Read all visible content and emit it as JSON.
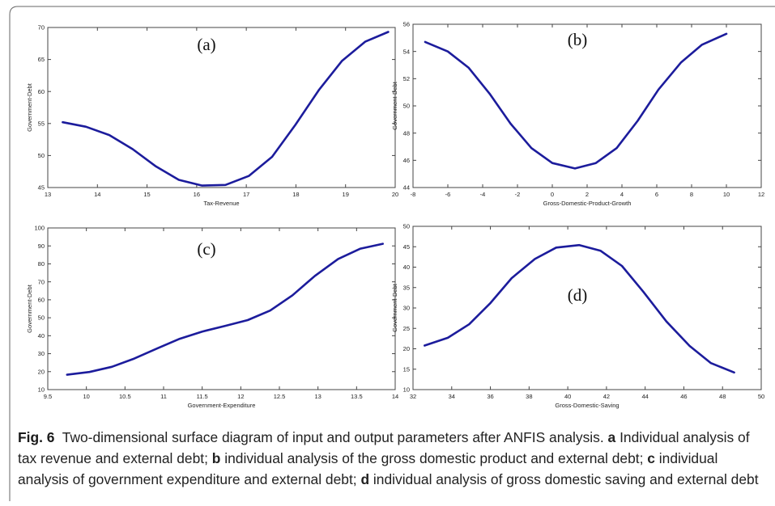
{
  "caption": {
    "fig_label": "Fig. 6",
    "title": "Two-dimensional surface diagram of input and output parameters after ANFIS analysis.",
    "parts": [
      {
        "letter": "a",
        "text": "Individual analysis of tax revenue and external debt;"
      },
      {
        "letter": "b",
        "text": "individual analysis of the gross domestic product and external debt;"
      },
      {
        "letter": "c",
        "text": "individual analysis of government expenditure and external debt;"
      },
      {
        "letter": "d",
        "text": "individual analysis of gross domestic saving and external debt"
      }
    ]
  },
  "colors": {
    "line": "#1c1c9c",
    "axis": "#444444",
    "text": "#222222"
  },
  "chart_data": [
    {
      "type": "line",
      "panel_label": "(a)",
      "xlabel": "Tax-Revenue",
      "ylabel": "Government-Debt",
      "xlim": [
        13,
        20
      ],
      "ylim": [
        45,
        70
      ],
      "xticks": [
        13,
        14,
        15,
        16,
        17,
        18,
        19,
        20
      ],
      "yticks": [
        45,
        50,
        55,
        60,
        65,
        70
      ],
      "x": [
        13.3,
        13.77,
        14.24,
        14.71,
        15.18,
        15.64,
        16.11,
        16.58,
        17.05,
        17.52,
        17.99,
        18.46,
        18.93,
        19.4,
        19.86
      ],
      "y": [
        55.2,
        54.5,
        53.2,
        51.0,
        48.3,
        46.2,
        45.3,
        45.4,
        46.8,
        49.8,
        54.8,
        60.2,
        64.8,
        67.8,
        69.3
      ]
    },
    {
      "type": "line",
      "panel_label": "(b)",
      "xlabel": "Gross-Domestic-Product-Growth",
      "ylabel": "Government-Debt",
      "xlim": [
        -8,
        12
      ],
      "ylim": [
        44,
        56
      ],
      "xticks": [
        -8,
        -6,
        -4,
        -2,
        0,
        2,
        4,
        6,
        8,
        10,
        12
      ],
      "yticks": [
        44,
        46,
        48,
        50,
        52,
        54,
        56
      ],
      "x": [
        -7.3,
        -6.0,
        -4.8,
        -3.6,
        -2.4,
        -1.2,
        0.0,
        1.3,
        2.5,
        3.7,
        4.9,
        6.1,
        7.4,
        8.6,
        10.0
      ],
      "y": [
        54.7,
        54.0,
        52.8,
        50.9,
        48.7,
        46.9,
        45.8,
        45.4,
        45.8,
        46.9,
        48.9,
        51.2,
        53.2,
        54.5,
        55.3
      ]
    },
    {
      "type": "line",
      "panel_label": "(c)",
      "xlabel": "Government-Expenditure",
      "ylabel": "Government-Debt",
      "xlim": [
        9.5,
        14
      ],
      "ylim": [
        10,
        100
      ],
      "xticks": [
        9.5,
        10,
        10.5,
        11,
        11.5,
        12,
        12.5,
        13,
        13.5,
        14
      ],
      "yticks": [
        10,
        20,
        30,
        40,
        50,
        60,
        70,
        80,
        90,
        100
      ],
      "x": [
        9.75,
        10.04,
        10.33,
        10.62,
        10.92,
        11.21,
        11.5,
        11.8,
        12.09,
        12.38,
        12.67,
        12.96,
        13.26,
        13.55,
        13.84
      ],
      "y": [
        18.3,
        19.8,
        22.7,
        27.3,
        33.0,
        38.3,
        42.3,
        45.5,
        48.7,
        54.0,
        62.5,
        73.3,
        82.7,
        88.5,
        91.2
      ]
    },
    {
      "type": "line",
      "panel_label": "(d)",
      "xlabel": "Gross-Domestic-Saving",
      "ylabel": "Government-Debt",
      "xlim": [
        32,
        50
      ],
      "ylim": [
        10,
        50
      ],
      "xticks": [
        32,
        34,
        36,
        38,
        40,
        42,
        44,
        46,
        48,
        50
      ],
      "yticks": [
        10,
        15,
        20,
        25,
        30,
        35,
        40,
        45,
        50
      ],
      "x": [
        32.6,
        33.8,
        34.9,
        36.0,
        37.1,
        38.3,
        39.4,
        40.6,
        41.7,
        42.8,
        43.9,
        45.1,
        46.3,
        47.4,
        48.6
      ],
      "y": [
        20.8,
        22.7,
        26.0,
        31.2,
        37.3,
        42.0,
        44.8,
        45.4,
        44.0,
        40.3,
        34.0,
        26.7,
        20.7,
        16.5,
        14.2
      ]
    }
  ]
}
